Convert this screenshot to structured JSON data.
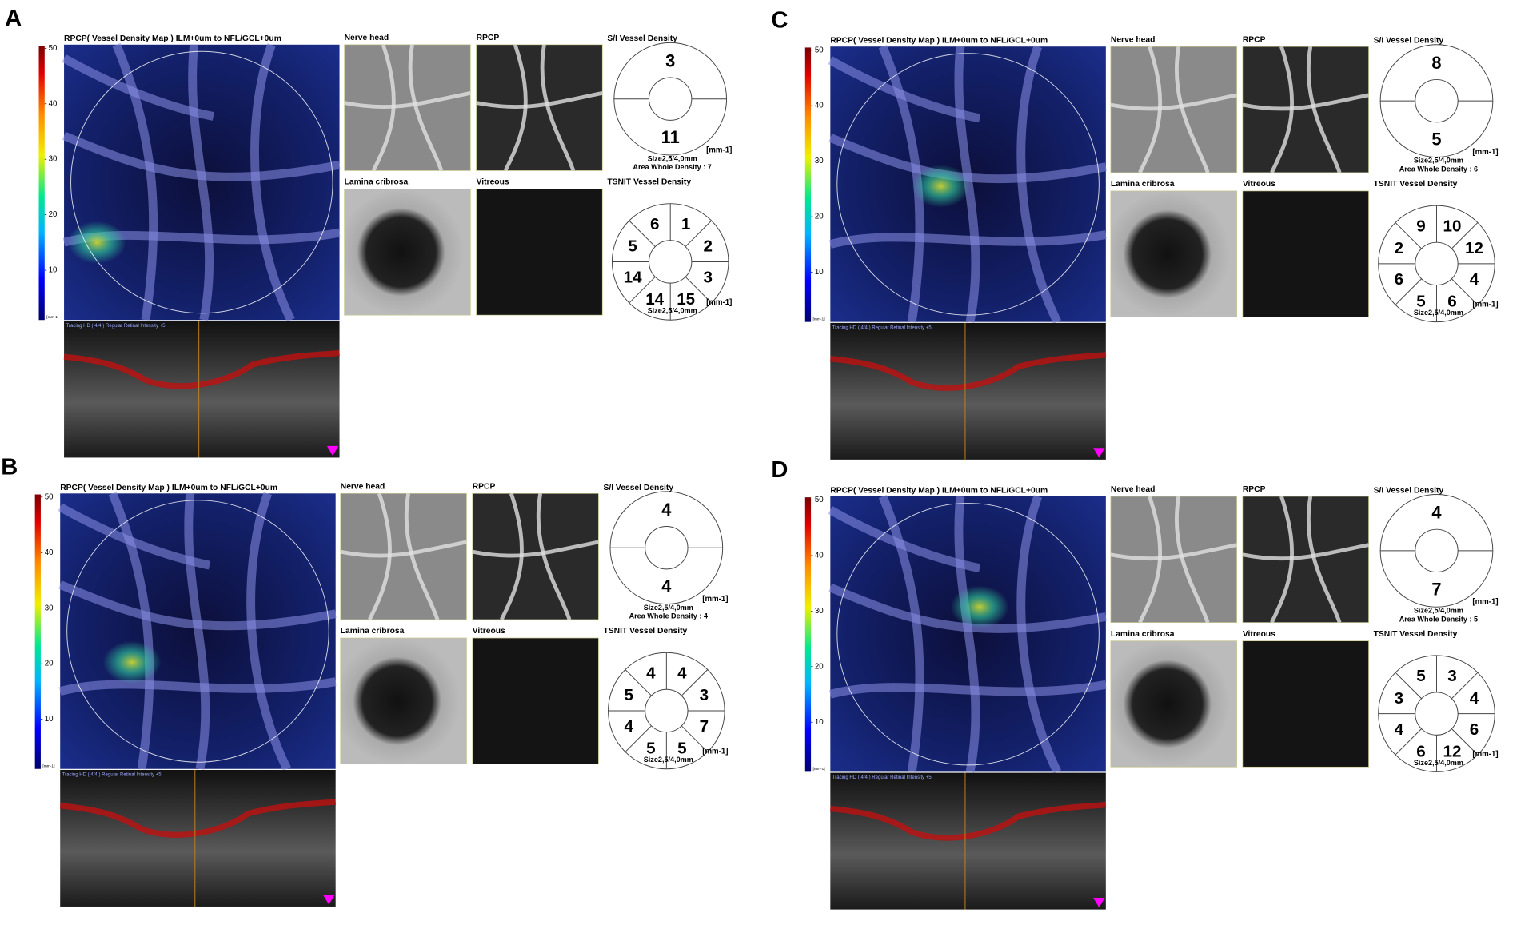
{
  "panels": [
    {
      "letter": "A",
      "map_title": "RPCP( Vessel Density Map ) ILM+0um to NFL/GCL+0um",
      "colorbar": {
        "ticks": [
          10,
          20,
          30,
          40,
          50
        ],
        "unit": "[mm-1]"
      },
      "oct_header": "Tracing HD ( 4/4 ) Regular Retinal Intensity +5",
      "images": [
        "Nerve head",
        "RPCP",
        "Lamina cribrosa",
        "Vitreous"
      ],
      "si": {
        "title": "S/I Vessel Density",
        "superior": 3,
        "inferior": 11,
        "unit": "[mm-1]",
        "size": "Size2,5/4,0mm",
        "area": "Area Whole Density : 7"
      },
      "tsnit": {
        "title": "TSNIT Vessel Density",
        "sectors": [
          6,
          1,
          2,
          3,
          15,
          14,
          14,
          5
        ],
        "unit": "[mm-1]",
        "size": "Size2,5/4,0mm"
      }
    },
    {
      "letter": "B",
      "map_title": "RPCP( Vessel Density Map ) ILM+0um to NFL/GCL+0um",
      "colorbar": {
        "ticks": [
          10,
          20,
          30,
          40,
          50
        ],
        "unit": "[mm-1]"
      },
      "oct_header": "Tracing HD ( 4/4 ) Regular Retinal Intensity +5",
      "images": [
        "Nerve head",
        "RPCP",
        "Lamina cribrosa",
        "Vitreous"
      ],
      "si": {
        "title": "S/I Vessel Density",
        "superior": 4,
        "inferior": 4,
        "unit": "[mm-1]",
        "size": "Size2,5/4,0mm",
        "area": "Area Whole Density : 4"
      },
      "tsnit": {
        "title": "TSNIT Vessel Density",
        "sectors": [
          4,
          4,
          3,
          7,
          5,
          5,
          4,
          5
        ],
        "unit": "[mm-1]",
        "size": "Size2,5/4,0mm"
      }
    },
    {
      "letter": "C",
      "map_title": "RPCP( Vessel Density Map ) ILM+0um to NFL/GCL+0um",
      "colorbar": {
        "ticks": [
          10,
          20,
          30,
          40,
          50
        ],
        "unit": "[mm-1]"
      },
      "oct_header": "Tracing HD ( 4/4 ) Regular Retinal Intensity +5",
      "images": [
        "Nerve head",
        "RPCP",
        "Lamina cribrosa",
        "Vitreous"
      ],
      "si": {
        "title": "S/I Vessel Density",
        "superior": 8,
        "inferior": 5,
        "unit": "[mm-1]",
        "size": "Size2,5/4,0mm",
        "area": "Area Whole Density : 6"
      },
      "tsnit": {
        "title": "TSNIT Vessel Density",
        "sectors": [
          9,
          10,
          12,
          4,
          6,
          5,
          6,
          2
        ],
        "unit": "[mm-1]",
        "size": "Size2,5/4,0mm"
      }
    },
    {
      "letter": "D",
      "map_title": "RPCP( Vessel Density Map ) ILM+0um to NFL/GCL+0um",
      "colorbar": {
        "ticks": [
          10,
          20,
          30,
          40,
          50
        ],
        "unit": "[mm-1]"
      },
      "oct_header": "Tracing HD ( 4/4 ) Regular Retinal Intensity +5",
      "images": [
        "Nerve head",
        "RPCP",
        "Lamina cribrosa",
        "Vitreous"
      ],
      "si": {
        "title": "S/I Vessel Density",
        "superior": 4,
        "inferior": 7,
        "unit": "[mm-1]",
        "size": "Size2,5/4,0mm",
        "area": "Area Whole Density : 5"
      },
      "tsnit": {
        "title": "TSNIT Vessel Density",
        "sectors": [
          5,
          3,
          4,
          6,
          12,
          6,
          4,
          3
        ],
        "unit": "[mm-1]",
        "size": "Size2,5/4,0mm"
      }
    }
  ]
}
